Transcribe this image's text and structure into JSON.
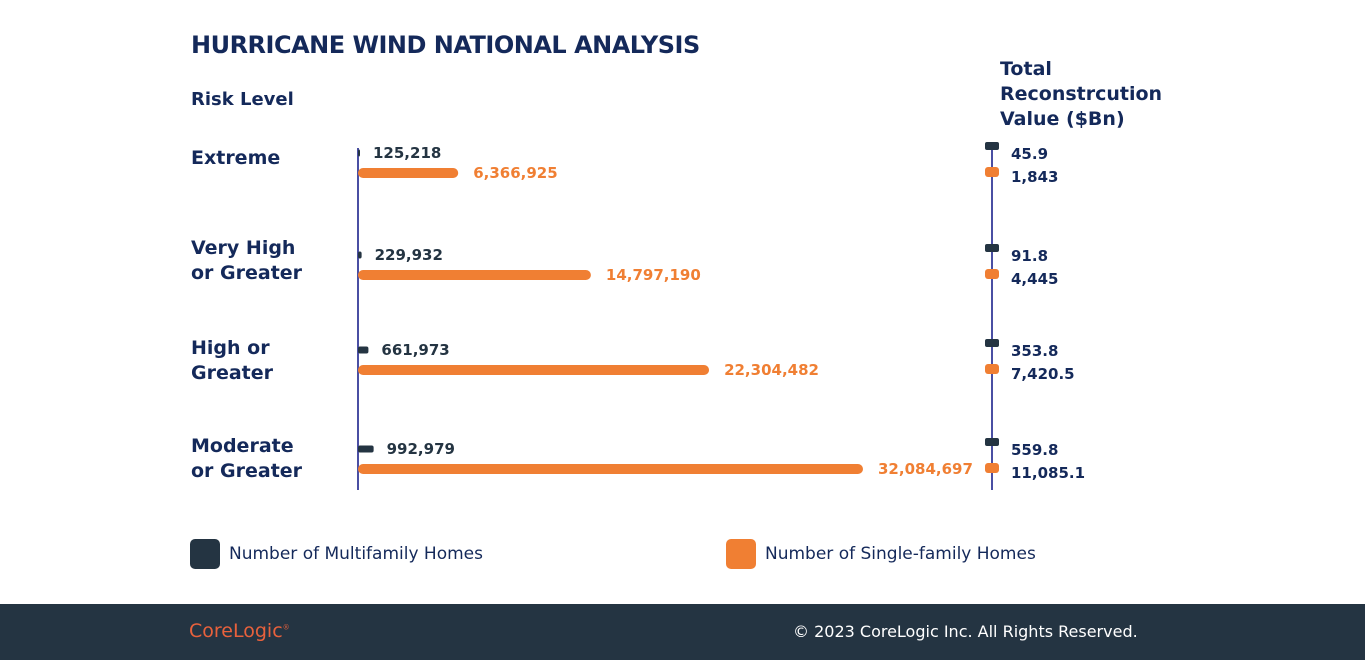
{
  "title": "HURRICANE WIND NATIONAL ANALYSIS",
  "risk_heading": "Risk Level",
  "total_heading": [
    "Total",
    "Reconstrcution",
    "Value ($Bn)"
  ],
  "colors": {
    "multifamily": "#243442",
    "single_family": "#f07f33",
    "axis": "#4a4fa3",
    "text": "#14295a"
  },
  "chart_data": {
    "type": "bar",
    "orientation": "horizontal",
    "title": "HURRICANE WIND NATIONAL ANALYSIS",
    "categories": [
      [
        "Extreme"
      ],
      [
        "Very High",
        "or Greater"
      ],
      [
        "High or",
        "Greater"
      ],
      [
        "Moderate",
        "or Greater"
      ]
    ],
    "series": [
      {
        "name": "Number of Multifamily Homes",
        "values": [
          125218,
          229932,
          661973,
          992979
        ],
        "labels": [
          "125,218",
          "229,932",
          "661,973",
          "992,979"
        ]
      },
      {
        "name": "Number of Single-family Homes",
        "values": [
          6366925,
          14797190,
          22304482,
          32084697
        ],
        "labels": [
          "6,366,925",
          "14,797,190",
          "22,304,482",
          "32,084,697"
        ]
      }
    ],
    "reconstruction_value": {
      "title": "Total Reconstrcution Value ($Bn)",
      "multifamily": [
        45.9,
        91.8,
        353.8,
        559.8
      ],
      "multifamily_labels": [
        "45.9",
        "91.8",
        "353.8",
        "559.8"
      ],
      "single_family": [
        1843,
        4445,
        7420.5,
        11085.1
      ],
      "single_family_labels": [
        "1,843",
        "4,445",
        "7,420.5",
        "11,085.1"
      ]
    },
    "grid": false,
    "legend_position": "bottom"
  },
  "legend": {
    "multifamily": "Number of Multifamily Homes",
    "single_family": "Number of Single-family Homes"
  },
  "footer": {
    "logo": "CoreLogic",
    "logo_mark": "®",
    "copyright": "© 2023 CoreLogic Inc. All Rights Reserved."
  }
}
